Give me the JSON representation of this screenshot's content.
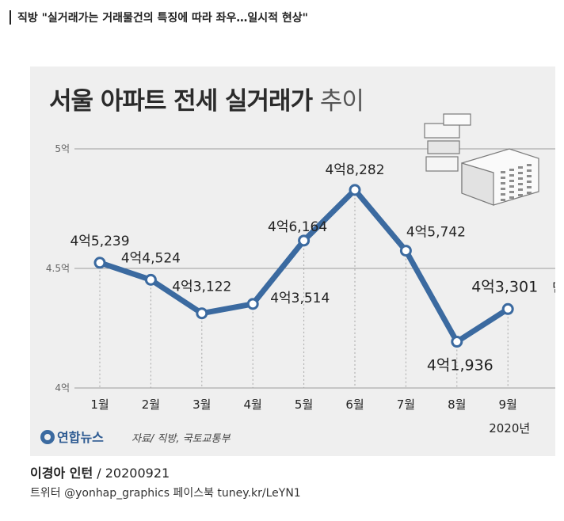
{
  "headline": "직방 \"실거래가는 거래물건의 특징에 따라 좌우…일시적 현상\"",
  "chart_data": {
    "type": "line",
    "title": "서울 아파트 전세 실거래가",
    "title_suffix": "추이",
    "categories": [
      "1월",
      "2월",
      "3월",
      "4월",
      "5월",
      "6월",
      "7월",
      "8월",
      "9월"
    ],
    "values": [
      45239,
      44524,
      43122,
      43514,
      46164,
      48282,
      45742,
      41936,
      43301
    ],
    "value_labels": [
      "4억5,239",
      "4억4,524",
      "4억3,122",
      "4억3,514",
      "4억6,164",
      "4억8,282",
      "4억5,742",
      "4억1,936",
      "4억3,301"
    ],
    "unit_label": "만원",
    "year_label": "2020년",
    "y_ticks": [
      {
        "value": 40000,
        "label": "4억"
      },
      {
        "value": 45000,
        "label": "4.5억"
      },
      {
        "value": 50000,
        "label": "5억"
      }
    ],
    "ylim": [
      40000,
      50000
    ],
    "line_color": "#3b6aa0",
    "marker_fill": "#ffffff"
  },
  "source_logo": "연합뉴스",
  "source": "자료/ 직방, 국토교통부",
  "byline_name": "이경아 인턴",
  "byline_date": " / 20200921",
  "social": "트위터 @yonhap_graphics  페이스북 tuney.kr/LeYN1"
}
